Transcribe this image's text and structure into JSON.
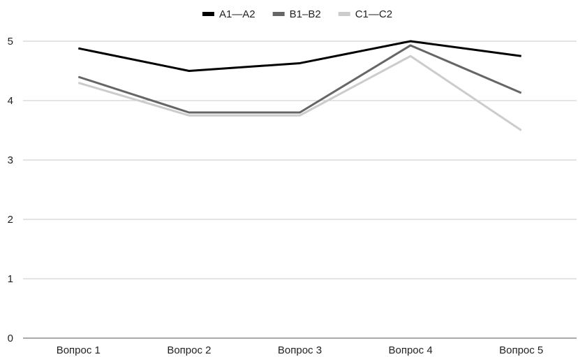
{
  "chart_data": {
    "type": "line",
    "categories": [
      "Вопрос 1",
      "Вопрос 2",
      "Вопрос 3",
      "Вопрос 4",
      "Вопрос 5"
    ],
    "series": [
      {
        "name": "A1—A2",
        "color": "#000000",
        "values": [
          4.88,
          4.5,
          4.63,
          5.0,
          4.75
        ]
      },
      {
        "name": "B1–B2",
        "color": "#666666",
        "values": [
          4.4,
          3.8,
          3.8,
          4.93,
          4.13
        ]
      },
      {
        "name": "C1—C2",
        "color": "#cccccc",
        "values": [
          4.3,
          3.75,
          3.75,
          4.75,
          3.5
        ]
      }
    ],
    "yticks": [
      0,
      1,
      2,
      3,
      4,
      5
    ],
    "ylim": [
      0,
      5
    ],
    "grid": true,
    "legend": "top-center",
    "title": "",
    "xlabel": "",
    "ylabel": ""
  }
}
